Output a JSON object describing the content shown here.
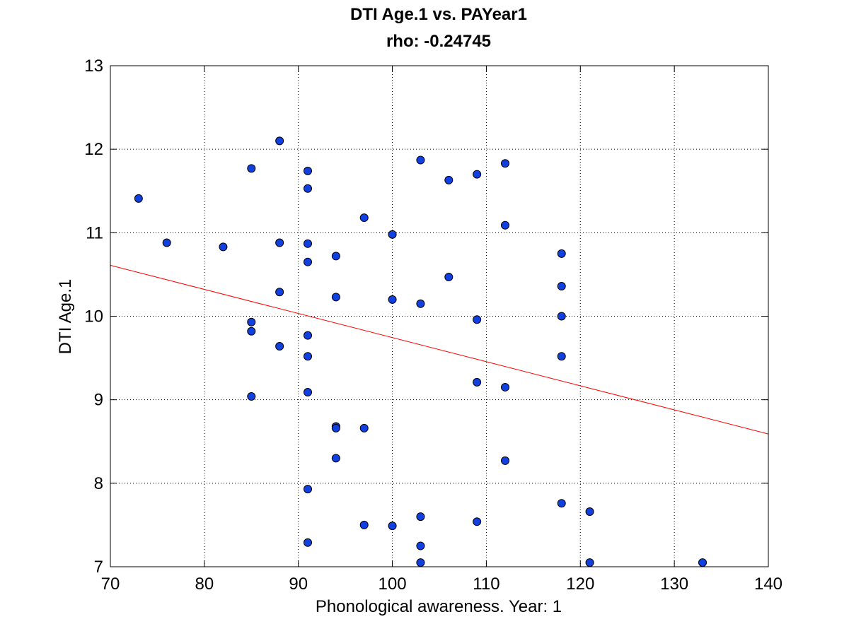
{
  "chart_data": {
    "type": "scatter",
    "title": "DTI Age.1 vs. PAYear1",
    "subtitle": "rho: -0.24745",
    "xlabel": "Phonological awareness. Year: 1",
    "ylabel": "DTI Age.1",
    "xlim": [
      70,
      140
    ],
    "ylim": [
      7,
      13
    ],
    "xticks": [
      70,
      80,
      90,
      100,
      110,
      120,
      130,
      140
    ],
    "yticks": [
      7,
      8,
      9,
      10,
      11,
      12,
      13
    ],
    "grid": true,
    "marker_color": "#1040e0",
    "marker_edge_color": "#000000",
    "fit_line": {
      "color": "#ff0000",
      "x": [
        70,
        140
      ],
      "y": [
        10.61,
        8.59
      ]
    },
    "series": [
      {
        "x": [
          73,
          76,
          82,
          85,
          85,
          85,
          85,
          88,
          88,
          88,
          88,
          91,
          91,
          91,
          91,
          91,
          91,
          91,
          91,
          91,
          94,
          94,
          94,
          94,
          94,
          97,
          97,
          97,
          100,
          100,
          100,
          103,
          103,
          103,
          103,
          103,
          106,
          106,
          109,
          109,
          109,
          109,
          112,
          112,
          112,
          112,
          118,
          118,
          118,
          118,
          118,
          121,
          121,
          133
        ],
        "y": [
          11.41,
          10.88,
          10.83,
          11.77,
          9.93,
          9.82,
          9.04,
          12.1,
          10.88,
          10.29,
          9.64,
          11.53,
          10.87,
          10.65,
          9.77,
          9.52,
          9.09,
          7.93,
          7.29,
          11.74,
          10.72,
          8.68,
          8.66,
          8.3,
          10.23,
          8.66,
          7.5,
          11.18,
          10.98,
          7.49,
          10.2,
          10.15,
          7.6,
          7.25,
          7.05,
          11.87,
          11.63,
          10.47,
          9.96,
          9.21,
          7.54,
          11.7,
          11.09,
          9.15,
          8.27,
          11.83,
          10.75,
          10.36,
          10.0,
          7.76,
          9.52,
          7.66,
          7.05,
          7.05
        ]
      }
    ]
  }
}
